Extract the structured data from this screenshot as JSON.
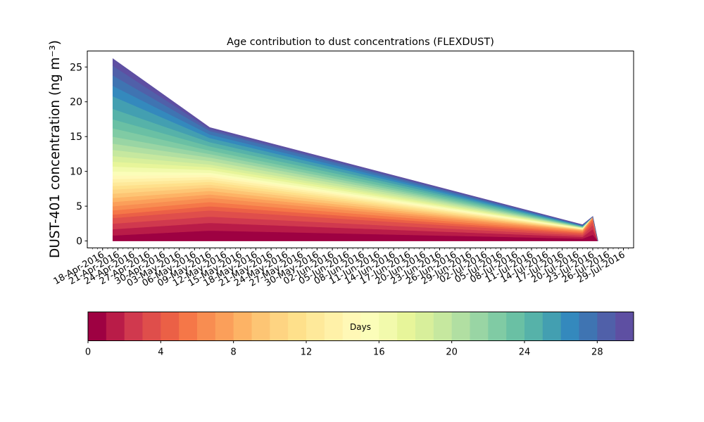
{
  "chart_data": {
    "type": "area",
    "title": "Age contribution to dust concentrations (FLEXDUST)",
    "ylabel": "DUST-401 concentration (ng m⁻³)",
    "xlabel": "",
    "stacked": true,
    "series_count": 30,
    "x": [
      "2016-04-20",
      "2016-05-09",
      "2016-07-21",
      "2016-07-23",
      "2016-07-24"
    ],
    "ylim": [
      -1,
      27.3
    ],
    "xlim": [
      "2016-04-15",
      "2016-07-31"
    ],
    "yticks": [
      0,
      5,
      10,
      15,
      20,
      25
    ],
    "xtick_labels": [
      "18-Apr-2016",
      "21-Apr-2016",
      "24-Apr-2016",
      "27-Apr-2016",
      "30-Apr-2016",
      "03-May-2016",
      "06-May-2016",
      "09-May-2016",
      "12-May-2016",
      "15-May-2016",
      "18-May-2016",
      "21-May-2016",
      "24-May-2016",
      "27-May-2016",
      "30-May-2016",
      "02-Jun-2016",
      "05-Jun-2016",
      "08-Jun-2016",
      "11-Jun-2016",
      "14-Jun-2016",
      "17-Jun-2016",
      "20-Jun-2016",
      "23-Jun-2016",
      "26-Jun-2016",
      "29-Jun-2016",
      "02-Jul-2016",
      "05-Jul-2016",
      "08-Jul-2016",
      "11-Jul-2016",
      "14-Jul-2016",
      "17-Jul-2016",
      "20-Jul-2016",
      "23-Jul-2016",
      "26-Jul-2016",
      "29-Jul-2016"
    ],
    "cumulative_levels": [
      [
        0,
        0,
        0,
        0,
        0
      ],
      [
        0.8,
        1.5,
        0.35,
        0.9,
        0
      ],
      [
        1.7,
        2.6,
        0.6,
        1.7,
        0
      ],
      [
        2.5,
        3.5,
        0.82,
        2.3,
        0
      ],
      [
        3.3,
        4.4,
        1.02,
        2.75,
        0
      ],
      [
        3.8,
        5.0,
        1.18,
        3.05,
        0
      ],
      [
        4.4,
        5.6,
        1.32,
        3.25,
        0
      ],
      [
        5.0,
        6.2,
        1.44,
        3.38,
        0
      ],
      [
        5.6,
        6.7,
        1.52,
        3.45,
        0
      ],
      [
        6.2,
        7.2,
        1.58,
        3.5,
        0
      ],
      [
        6.8,
        7.7,
        1.63,
        3.5,
        0
      ],
      [
        7.4,
        8.1,
        1.67,
        3.5,
        0
      ],
      [
        7.9,
        8.5,
        1.7,
        3.5,
        0
      ],
      [
        8.4,
        8.85,
        1.73,
        3.5,
        0
      ],
      [
        8.9,
        9.2,
        1.76,
        3.5,
        0
      ],
      [
        9.4,
        9.5,
        1.79,
        3.5,
        0
      ],
      [
        10.0,
        9.8,
        1.82,
        3.5,
        0
      ],
      [
        10.7,
        10.2,
        1.85,
        3.5,
        0
      ],
      [
        11.4,
        10.6,
        1.88,
        3.5,
        0
      ],
      [
        12.2,
        11.0,
        1.91,
        3.5,
        0
      ],
      [
        13.1,
        11.5,
        1.94,
        3.5,
        0
      ],
      [
        14.0,
        12.0,
        1.97,
        3.5,
        0
      ],
      [
        15.0,
        12.5,
        2.0,
        3.5,
        0
      ],
      [
        16.2,
        13.0,
        2.04,
        3.5,
        0
      ],
      [
        17.5,
        13.6,
        2.08,
        3.5,
        0
      ],
      [
        19.0,
        14.2,
        2.12,
        3.5,
        0
      ],
      [
        20.8,
        14.8,
        2.16,
        3.5,
        0
      ],
      [
        22.3,
        15.3,
        2.2,
        3.5,
        0
      ],
      [
        23.8,
        15.8,
        2.25,
        3.5,
        0
      ],
      [
        25.2,
        16.1,
        2.3,
        3.5,
        0
      ],
      [
        26.2,
        16.3,
        2.35,
        3.52,
        0
      ]
    ]
  },
  "colorbar": {
    "label": "Days",
    "min": 0,
    "max": 30,
    "ticks": [
      0,
      4,
      8,
      12,
      16,
      20,
      24,
      28
    ],
    "tick_labels": [
      "0",
      "4",
      "8",
      "12",
      "16",
      "20",
      "24",
      "28"
    ],
    "colors": [
      "#9e0142",
      "#b91c48",
      "#d0394e",
      "#df4e4b",
      "#eb6046",
      "#f57748",
      "#f88d51",
      "#fb9f5a",
      "#fdb365",
      "#fdc574",
      "#fed482",
      "#fee08b",
      "#fee99a",
      "#fff1a8",
      "#fff8b6",
      "#fbfdb9",
      "#f2faac",
      "#e7f59a",
      "#d8ef9b",
      "#c6e89f",
      "#b1dfa2",
      "#99d5a4",
      "#80cba4",
      "#6ac0a4",
      "#56b2a9",
      "#439fb1",
      "#3489bd",
      "#3f74b2",
      "#5060a9",
      "#5e4fa2"
    ]
  }
}
